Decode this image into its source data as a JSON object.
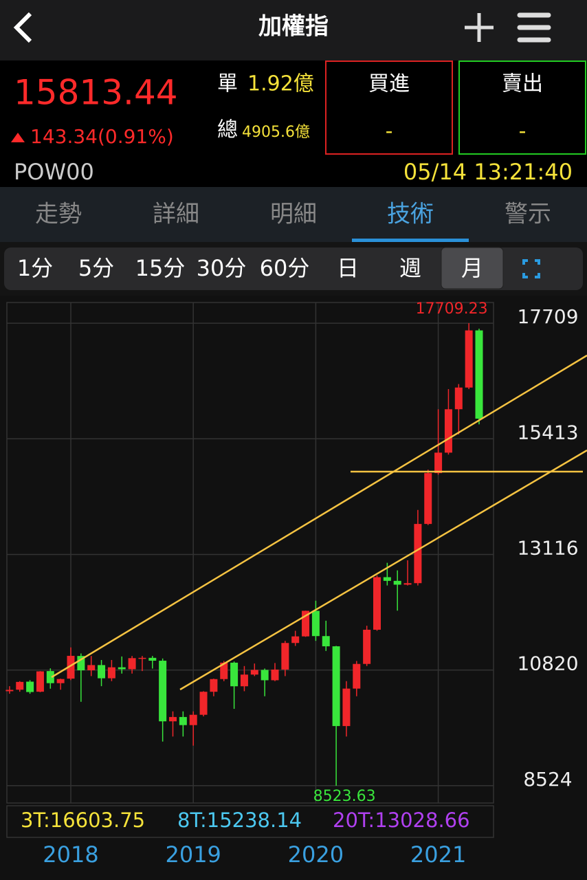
{
  "header": {
    "title": "加權指"
  },
  "quote": {
    "price": "15813.44",
    "change": "143.34(0.91%)",
    "single_label": "單",
    "single_value": "1.92億",
    "total_label": "總",
    "total_value": "4905.6億",
    "buy_label": "買進",
    "buy_value": "-",
    "sell_label": "賣出",
    "sell_value": "-",
    "code": "POW00",
    "time": "05/14 13:21:40"
  },
  "tabs": {
    "items": [
      "走勢",
      "詳細",
      "明細",
      "技術",
      "警示"
    ],
    "active": 3
  },
  "intervals": {
    "items": [
      "1分",
      "5分",
      "15分",
      "30分",
      "60分",
      "日",
      "週",
      "月"
    ],
    "active": 7
  },
  "chart_data": {
    "type": "candlestick",
    "categories": [
      null,
      null,
      null,
      null,
      null,
      null,
      "2018",
      null,
      null,
      null,
      null,
      null,
      null,
      null,
      null,
      null,
      null,
      null,
      "2019",
      null,
      null,
      null,
      null,
      null,
      null,
      null,
      null,
      null,
      null,
      null,
      "2020",
      null,
      null,
      null,
      null,
      null,
      null,
      null,
      null,
      null,
      null,
      null,
      "2021",
      null,
      null,
      null,
      null
    ],
    "open": [
      10400,
      10430,
      10590,
      10390,
      10800,
      10560,
      10650,
      11100,
      10815,
      10919,
      10657,
      10875,
      10837,
      11057,
      11063,
      11006,
      9802,
      9888,
      9727,
      9932,
      10389,
      10641,
      10967,
      10498,
      10730,
      10823,
      10618,
      10830,
      11358,
      11489,
      11997,
      11495,
      11292,
      9708,
      10452,
      10942,
      11621,
      12665,
      12592,
      12516,
      12546,
      13722,
      14732,
      15138,
      16000,
      16431,
      17566
    ],
    "high": [
      10500,
      10600,
      10620,
      10800,
      10854,
      10650,
      11270,
      11150,
      11100,
      11020,
      11020,
      11090,
      11100,
      11100,
      11100,
      11050,
      10000,
      10000,
      10000,
      10400,
      10650,
      11000,
      10990,
      10900,
      10950,
      10850,
      10960,
      11400,
      11600,
      12000,
      12197,
      11800,
      11300,
      10600,
      11000,
      11700,
      12700,
      12950,
      12800,
      13000,
      14000,
      14800,
      16000,
      16400,
      16500,
      17709.23,
      17600
    ],
    "low": [
      10350,
      10390,
      10350,
      10380,
      10450,
      10430,
      10620,
      10190,
      10700,
      10500,
      10600,
      10750,
      10750,
      10800,
      10850,
      9400,
      9500,
      9500,
      9319,
      9900,
      10300,
      10600,
      10050,
      10400,
      10700,
      10300,
      10600,
      10700,
      11300,
      11480,
      11400,
      11200,
      8523.63,
      9500,
      10300,
      10900,
      11600,
      12500,
      12000,
      12500,
      12500,
      13700,
      14700,
      15100,
      15500,
      16400,
      15700
    ],
    "close": [
      10427,
      10585,
      10384,
      10794,
      10560,
      10642,
      11103,
      10815,
      10919,
      10657,
      10875,
      10837,
      11057,
      11063,
      11006,
      9802,
      9888,
      9727,
      9932,
      10389,
      10641,
      10967,
      10498,
      10730,
      10823,
      10618,
      10830,
      11358,
      11489,
      11997,
      11495,
      11292,
      9708,
      10452,
      10942,
      11621,
      12665,
      12592,
      12516,
      12546,
      13722,
      14732,
      15138,
      16000,
      16431,
      17566,
      15813
    ],
    "up_color": "#f0262a",
    "down_color": "#39e63c",
    "ylim": [
      8180,
      18120
    ],
    "yticks": [
      17709,
      15413,
      13116,
      10820,
      8524
    ],
    "grid": true,
    "indicators": [
      {
        "text": "3T:16603.75",
        "color": "#f5e23a"
      },
      {
        "text": "8T:15238.14",
        "color": "#4cc8f0"
      },
      {
        "text": "20T:13028.66",
        "color": "#b040f0"
      }
    ]
  }
}
